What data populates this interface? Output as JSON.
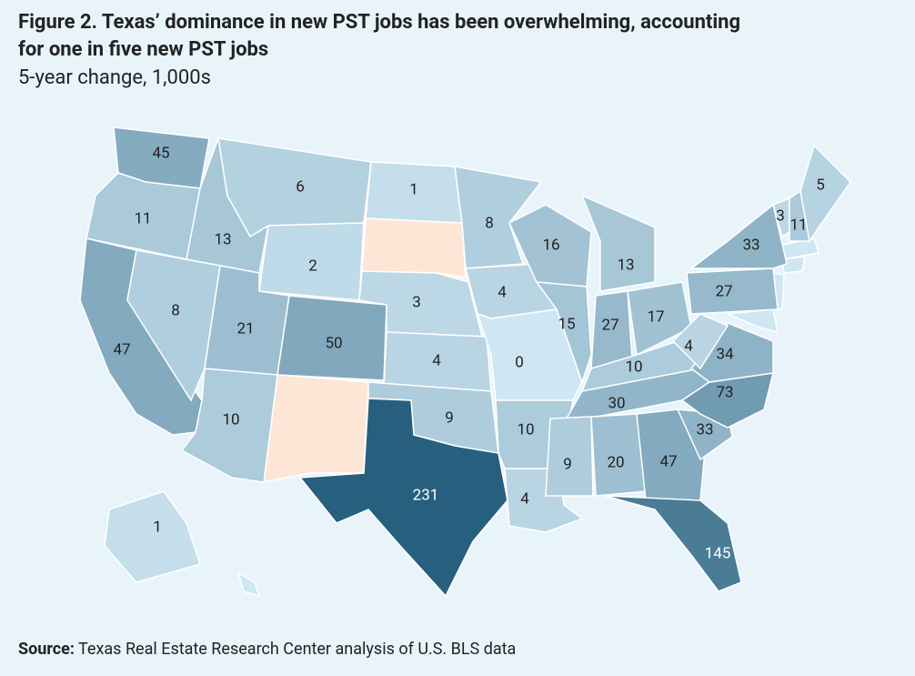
{
  "chart_data": {
    "type": "choropleth",
    "title": "Figure 2. Texas’ dominance in new PST jobs has been overwhelming, accounting for one in five new PST jobs",
    "subtitle": "5-year change, 1,000s",
    "values": [
      45,
      11,
      47,
      13,
      8,
      6,
      2,
      21,
      10,
      50,
      1,
      3,
      4,
      9,
      231,
      8,
      4,
      0,
      10,
      4,
      16,
      15,
      13,
      27,
      17,
      10,
      30,
      9,
      20,
      47,
      145,
      33,
      73,
      34,
      4,
      27,
      33,
      3,
      11,
      5,
      1
    ],
    "colors": [
      "#cfe7f3",
      "#27607e"
    ],
    "source_label": "Source:",
    "source": "Texas Real Estate Research Center analysis of U.S. BLS data"
  }
}
